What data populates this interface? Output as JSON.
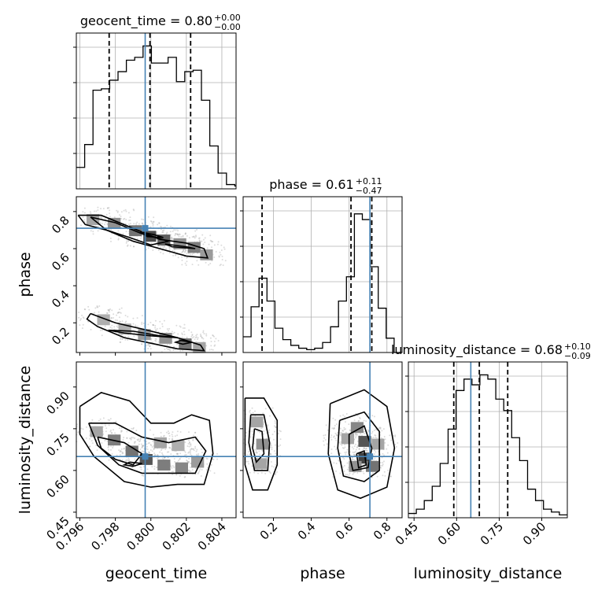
{
  "chart_data": [
    {
      "type": "histogram",
      "panel": "geocent_time-marginal",
      "parameter": "geocent_time",
      "title": {
        "main": "geocent_time = 0.80",
        "plus": "+0.00",
        "minus": "−0.00"
      },
      "xlim": [
        0.7958,
        0.8048
      ],
      "bin_edges": [
        0.7958,
        0.79627,
        0.79674,
        0.79721,
        0.79768,
        0.79815,
        0.79862,
        0.79909,
        0.79956,
        0.80003,
        0.8005,
        0.80097,
        0.80144,
        0.80191,
        0.80238,
        0.80285,
        0.80332,
        0.80379,
        0.80426,
        0.80473,
        0.8048
      ],
      "density": [
        0.15,
        0.31,
        0.69,
        0.7,
        0.76,
        0.82,
        0.9,
        0.92,
        1.0,
        0.88,
        0.88,
        0.92,
        0.75,
        0.82,
        0.83,
        0.62,
        0.3,
        0.11,
        0.03,
        0.02
      ],
      "quantiles": [
        0.79765,
        0.79995,
        0.80224
      ],
      "truth": 0.79968
    },
    {
      "type": "scatter+contour",
      "panel": "phase-vs-geocent_time",
      "x_parameter": "geocent_time",
      "y_parameter": "phase",
      "xlim": [
        0.7958,
        0.8048
      ],
      "ylim": [
        0.04,
        0.88
      ],
      "yticks": [
        "0.2",
        "0.4",
        "0.6",
        "0.8"
      ],
      "ylabel": "phase",
      "contours": [
        [
          [
            0.7959,
            0.78
          ],
          [
            0.7972,
            0.78
          ],
          [
            0.799,
            0.71
          ],
          [
            0.8005,
            0.65
          ],
          [
            0.802,
            0.63
          ],
          [
            0.803,
            0.6
          ],
          [
            0.8032,
            0.55
          ],
          [
            0.802,
            0.56
          ],
          [
            0.8005,
            0.6
          ],
          [
            0.799,
            0.64
          ],
          [
            0.7975,
            0.7
          ],
          [
            0.7963,
            0.73
          ],
          [
            0.7959,
            0.78
          ]
        ],
        [
          [
            0.7966,
            0.77
          ],
          [
            0.798,
            0.74
          ],
          [
            0.7995,
            0.68
          ],
          [
            0.801,
            0.64
          ],
          [
            0.8,
            0.62
          ],
          [
            0.7988,
            0.66
          ],
          [
            0.7975,
            0.7
          ],
          [
            0.7966,
            0.77
          ]
        ],
        [
          [
            0.7966,
            0.25
          ],
          [
            0.798,
            0.2
          ],
          [
            0.7998,
            0.16
          ],
          [
            0.8015,
            0.12
          ],
          [
            0.8028,
            0.08
          ],
          [
            0.803,
            0.05
          ],
          [
            0.8015,
            0.06
          ],
          [
            0.8,
            0.09
          ],
          [
            0.7985,
            0.12
          ],
          [
            0.797,
            0.18
          ],
          [
            0.7964,
            0.22
          ],
          [
            0.7966,
            0.25
          ]
        ],
        [
          [
            0.7976,
            0.16
          ],
          [
            0.799,
            0.155
          ],
          [
            0.8005,
            0.13
          ],
          [
            0.8015,
            0.12
          ],
          [
            0.8,
            0.13
          ],
          [
            0.7985,
            0.145
          ],
          [
            0.7976,
            0.16
          ]
        ],
        [
          [
            0.7994,
            0.69
          ],
          [
            0.8002,
            0.675
          ],
          [
            0.8007,
            0.66
          ],
          [
            0.7998,
            0.665
          ],
          [
            0.7994,
            0.69
          ]
        ],
        [
          [
            0.8008,
            0.625
          ],
          [
            0.802,
            0.61
          ],
          [
            0.8025,
            0.6
          ],
          [
            0.8012,
            0.61
          ],
          [
            0.8008,
            0.625
          ]
        ],
        [
          [
            0.8017,
            0.105
          ],
          [
            0.8023,
            0.095
          ],
          [
            0.8018,
            0.085
          ],
          [
            0.8014,
            0.095
          ],
          [
            0.8017,
            0.105
          ]
        ]
      ],
      "density_cells": [
        [
          0.7966,
          0.765,
          0.35
        ],
        [
          0.7978,
          0.745,
          0.45
        ],
        [
          0.799,
          0.705,
          0.6
        ],
        [
          0.7998,
          0.675,
          0.8
        ],
        [
          0.8006,
          0.655,
          0.7
        ],
        [
          0.8015,
          0.635,
          0.45
        ],
        [
          0.8023,
          0.615,
          0.55
        ],
        [
          0.803,
          0.575,
          0.4
        ],
        [
          0.7972,
          0.225,
          0.3
        ],
        [
          0.7984,
          0.175,
          0.3
        ],
        [
          0.7995,
          0.145,
          0.4
        ],
        [
          0.8007,
          0.125,
          0.45
        ],
        [
          0.8018,
          0.095,
          0.6
        ],
        [
          0.8026,
          0.075,
          0.35
        ]
      ],
      "truth": [
        0.79968,
        0.71
      ]
    },
    {
      "type": "scatter+contour",
      "panel": "luminosity_distance-vs-geocent_time",
      "x_parameter": "geocent_time",
      "y_parameter": "luminosity_distance",
      "xlim": [
        0.7958,
        0.8048
      ],
      "ylim": [
        0.43,
        0.99
      ],
      "xticks": [
        "0.796",
        "0.798",
        "0.800",
        "0.802",
        "0.804"
      ],
      "yticks": [
        "0.45",
        "0.60",
        "0.75",
        "0.90"
      ],
      "xlabel": "geocent_time",
      "ylabel": "luminosity_distance",
      "contours": [
        [
          [
            0.796,
            0.83
          ],
          [
            0.7972,
            0.88
          ],
          [
            0.7988,
            0.85
          ],
          [
            0.8,
            0.77
          ],
          [
            0.8013,
            0.77
          ],
          [
            0.8023,
            0.8
          ],
          [
            0.8033,
            0.78
          ],
          [
            0.8035,
            0.66
          ],
          [
            0.803,
            0.55
          ],
          [
            0.8015,
            0.55
          ],
          [
            0.8,
            0.54
          ],
          [
            0.7985,
            0.56
          ],
          [
            0.7968,
            0.65
          ],
          [
            0.796,
            0.73
          ],
          [
            0.796,
            0.83
          ]
        ],
        [
          [
            0.7965,
            0.77
          ],
          [
            0.798,
            0.77
          ],
          [
            0.7995,
            0.72
          ],
          [
            0.801,
            0.7
          ],
          [
            0.8025,
            0.72
          ],
          [
            0.8031,
            0.67
          ],
          [
            0.8025,
            0.59
          ],
          [
            0.801,
            0.59
          ],
          [
            0.7995,
            0.59
          ],
          [
            0.7982,
            0.62
          ],
          [
            0.797,
            0.69
          ],
          [
            0.7965,
            0.77
          ]
        ],
        [
          [
            0.797,
            0.72
          ],
          [
            0.7985,
            0.7
          ],
          [
            0.7995,
            0.66
          ],
          [
            0.799,
            0.62
          ],
          [
            0.798,
            0.64
          ],
          [
            0.7972,
            0.68
          ],
          [
            0.797,
            0.72
          ]
        ],
        [
          [
            0.7988,
            0.63
          ],
          [
            0.7995,
            0.625
          ],
          [
            0.799,
            0.615
          ],
          [
            0.7985,
            0.62
          ],
          [
            0.7988,
            0.63
          ]
        ]
      ],
      "density_cells": [
        [
          0.7968,
          0.745,
          0.35
        ],
        [
          0.7978,
          0.715,
          0.55
        ],
        [
          0.7988,
          0.675,
          0.6
        ],
        [
          0.7996,
          0.645,
          0.75
        ],
        [
          0.8006,
          0.625,
          0.55
        ],
        [
          0.8016,
          0.615,
          0.5
        ],
        [
          0.8025,
          0.635,
          0.4
        ],
        [
          0.8004,
          0.705,
          0.35
        ],
        [
          0.8014,
          0.695,
          0.3
        ]
      ],
      "truth": [
        0.79968,
        0.65
      ]
    },
    {
      "type": "histogram",
      "panel": "phase-marginal",
      "parameter": "phase",
      "title": {
        "main": "phase = 0.61",
        "plus": "+0.11",
        "minus": "−0.47"
      },
      "xlim": [
        0.04,
        0.88
      ],
      "bin_edges": [
        0.04,
        0.082,
        0.124,
        0.166,
        0.208,
        0.25,
        0.292,
        0.334,
        0.376,
        0.418,
        0.46,
        0.502,
        0.544,
        0.586,
        0.628,
        0.67,
        0.712,
        0.754,
        0.796,
        0.838,
        0.88
      ],
      "density": [
        0.11,
        0.32,
        0.52,
        0.36,
        0.17,
        0.09,
        0.05,
        0.03,
        0.02,
        0.03,
        0.07,
        0.18,
        0.36,
        0.53,
        0.97,
        0.93,
        0.6,
        0.31,
        0.1,
        0.0
      ],
      "quantiles": [
        0.14,
        0.61,
        0.72
      ],
      "truth": 0.71
    },
    {
      "type": "scatter+contour",
      "panel": "luminosity_distance-vs-phase",
      "x_parameter": "phase",
      "y_parameter": "luminosity_distance",
      "xlim": [
        0.04,
        0.88
      ],
      "ylim": [
        0.43,
        0.99
      ],
      "xticks": [
        "0.2",
        "0.4",
        "0.6",
        "0.8"
      ],
      "xlabel": "phase",
      "contours": [
        [
          [
            0.05,
            0.86
          ],
          [
            0.15,
            0.86
          ],
          [
            0.22,
            0.78
          ],
          [
            0.22,
            0.62
          ],
          [
            0.17,
            0.53
          ],
          [
            0.09,
            0.53
          ],
          [
            0.05,
            0.62
          ],
          [
            0.05,
            0.86
          ]
        ],
        [
          [
            0.08,
            0.8
          ],
          [
            0.15,
            0.8
          ],
          [
            0.18,
            0.7
          ],
          [
            0.17,
            0.6
          ],
          [
            0.1,
            0.6
          ],
          [
            0.07,
            0.7
          ],
          [
            0.08,
            0.8
          ]
        ],
        [
          [
            0.1,
            0.75
          ],
          [
            0.14,
            0.74
          ],
          [
            0.15,
            0.66
          ],
          [
            0.11,
            0.63
          ],
          [
            0.09,
            0.68
          ],
          [
            0.1,
            0.75
          ]
        ],
        [
          [
            0.5,
            0.84
          ],
          [
            0.68,
            0.89
          ],
          [
            0.8,
            0.83
          ],
          [
            0.84,
            0.68
          ],
          [
            0.8,
            0.54
          ],
          [
            0.66,
            0.5
          ],
          [
            0.54,
            0.53
          ],
          [
            0.49,
            0.66
          ],
          [
            0.5,
            0.84
          ]
        ],
        [
          [
            0.55,
            0.78
          ],
          [
            0.68,
            0.81
          ],
          [
            0.76,
            0.74
          ],
          [
            0.76,
            0.6
          ],
          [
            0.68,
            0.56
          ],
          [
            0.57,
            0.58
          ],
          [
            0.54,
            0.68
          ],
          [
            0.55,
            0.78
          ]
        ],
        [
          [
            0.6,
            0.73
          ],
          [
            0.68,
            0.76
          ],
          [
            0.72,
            0.68
          ],
          [
            0.7,
            0.61
          ],
          [
            0.62,
            0.6
          ],
          [
            0.6,
            0.66
          ],
          [
            0.6,
            0.73
          ]
        ],
        [
          [
            0.64,
            0.66
          ],
          [
            0.68,
            0.67
          ],
          [
            0.69,
            0.62
          ],
          [
            0.65,
            0.61
          ],
          [
            0.64,
            0.66
          ]
        ]
      ],
      "density_cells": [
        [
          0.1,
          0.78,
          0.35
        ],
        [
          0.13,
          0.7,
          0.45
        ],
        [
          0.12,
          0.63,
          0.35
        ],
        [
          0.58,
          0.72,
          0.35
        ],
        [
          0.63,
          0.76,
          0.5
        ],
        [
          0.67,
          0.71,
          0.75
        ],
        [
          0.67,
          0.65,
          0.85
        ],
        [
          0.71,
          0.62,
          0.6
        ],
        [
          0.62,
          0.62,
          0.45
        ],
        [
          0.74,
          0.7,
          0.35
        ]
      ],
      "truth": [
        0.71,
        0.65
      ]
    },
    {
      "type": "histogram",
      "panel": "luminosity_distance-marginal",
      "parameter": "luminosity_distance",
      "title": {
        "main": "luminosity_distance = 0.68",
        "plus": "+0.10",
        "minus": "−0.09"
      },
      "xlim": [
        0.43,
        0.99
      ],
      "xticks": [
        "0.45",
        "0.60",
        "0.75",
        "0.90"
      ],
      "xlabel": "luminosity_distance",
      "bin_edges": [
        0.43,
        0.458,
        0.486,
        0.514,
        0.542,
        0.57,
        0.598,
        0.626,
        0.654,
        0.682,
        0.71,
        0.738,
        0.766,
        0.794,
        0.822,
        0.85,
        0.878,
        0.906,
        0.934,
        0.962,
        0.99
      ],
      "density": [
        0.03,
        0.06,
        0.12,
        0.22,
        0.38,
        0.62,
        0.89,
        0.97,
        0.93,
        1.0,
        0.97,
        0.83,
        0.75,
        0.56,
        0.4,
        0.2,
        0.12,
        0.06,
        0.04,
        0.02
      ],
      "quantiles": [
        0.59,
        0.68,
        0.78
      ],
      "truth": 0.65
    }
  ]
}
